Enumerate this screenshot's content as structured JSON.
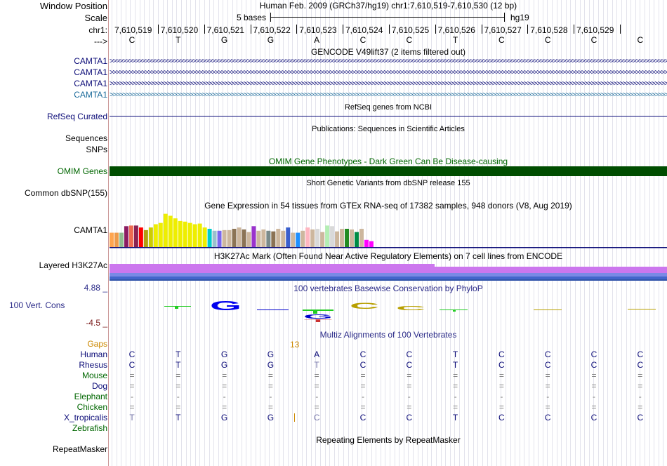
{
  "header": {
    "window_position_label": "Window Position",
    "scale_label": "Scale",
    "chrom_label": "chr1:",
    "strand_label": "--->",
    "assembly_title": "Human Feb. 2009 (GRCh37/hg19)   chr1:7,610,519-7,610,530 (12 bp)",
    "scale_text": "5 bases",
    "scale_db": "hg19",
    "coordinates": [
      "7,610,519",
      "7,610,520",
      "7,610,521",
      "7,610,522",
      "7,610,523",
      "7,610,524",
      "7,610,525",
      "7,610,526",
      "7,610,527",
      "7,610,528",
      "7,610,529"
    ],
    "bases": [
      "C",
      "T",
      "G",
      "G",
      "A",
      "C",
      "C",
      "T",
      "C",
      "C",
      "C",
      "C"
    ]
  },
  "tracks": {
    "gencode": {
      "title": "GENCODE V49lift37 (2 items filtered out)",
      "items": [
        "CAMTA1",
        "CAMTA1",
        "CAMTA1",
        "CAMTA1"
      ],
      "colors": [
        "#0c0c78",
        "#0c0c78",
        "#0c0c78",
        "#1a6a9a"
      ]
    },
    "refseq": {
      "label": "RefSeq Curated",
      "title": "RefSeq genes from NCBI"
    },
    "publications": {
      "label": "Sequences",
      "title": "Publications: Sequences in Scientific Articles"
    },
    "pub_snps": {
      "label": "SNPs"
    },
    "omim": {
      "label": "OMIM Genes",
      "title": "OMIM Gene Phenotypes - Dark Green Can Be Disease-causing",
      "color": "#004d00"
    },
    "dbsnp": {
      "label": "Common dbSNP(155)",
      "title": "Short Genetic Variants from dbSNP release 155"
    },
    "gtex": {
      "label": "CAMTA1",
      "title": "Gene Expression in 54 tissues from GTEx RNA-seq of 17382 samples, 948 donors (V8, Aug 2019)"
    },
    "h3k27ac": {
      "label": "Layered H3K27Ac",
      "title": "H3K27Ac Mark (Often Found Near Active Regulatory Elements) on 7 cell lines from ENCODE"
    },
    "cons": {
      "label": "100 Vert. Cons",
      "max": "4.88 _",
      "min": "-4.5 _",
      "title": "100 vertebrates Basewise Conservation by PhyloP"
    },
    "multiz": {
      "title": "Multiz Alignments of 100 Vertebrates",
      "gaps_label": "Gaps",
      "gaps_value": "13",
      "species": [
        {
          "name": "Human",
          "row": [
            "C",
            "T",
            "G",
            "G",
            "A",
            "C",
            "C",
            "T",
            "C",
            "C",
            "C",
            "C"
          ]
        },
        {
          "name": "Rhesus",
          "row": [
            "C",
            "T",
            "G",
            "G",
            "T",
            "C",
            "C",
            "T",
            "C",
            "C",
            "C",
            "C"
          ]
        },
        {
          "name": "Mouse",
          "row": [
            "=",
            "=",
            "=",
            "=",
            "=",
            "=",
            "=",
            "=",
            "=",
            "=",
            "=",
            "="
          ]
        },
        {
          "name": "Dog",
          "row": [
            "=",
            "=",
            "=",
            "=",
            "=",
            "=",
            "=",
            "=",
            "=",
            "=",
            "=",
            "="
          ]
        },
        {
          "name": "Elephant",
          "row": [
            "-",
            "-",
            "-",
            "-",
            "-",
            "-",
            "-",
            "-",
            "-",
            "-",
            "-",
            "-"
          ]
        },
        {
          "name": "Chicken",
          "row": [
            "=",
            "=",
            "=",
            "=",
            "=",
            "=",
            "=",
            "=",
            "=",
            "=",
            "=",
            "="
          ]
        },
        {
          "name": "X_tropicalis",
          "row": [
            "T",
            "T",
            "G",
            "G",
            "C",
            "C",
            "C",
            "T",
            "C",
            "C",
            "C",
            "C"
          ]
        },
        {
          "name": "Zebrafish",
          "row": [
            "",
            "",
            "",
            "",
            "",
            "",
            "",
            "",
            "",
            "",
            "",
            ""
          ]
        }
      ]
    },
    "repeatmasker": {
      "label": "RepeatMasker",
      "title": "Repeating Elements by RepeatMasker"
    }
  },
  "chart_data": {
    "type": "bar",
    "title": "Gene Expression in 54 tissues from GTEx RNA-seq of 17382 samples, 948 donors (V8, Aug 2019)",
    "values": [
      22,
      22,
      22,
      32,
      33,
      33,
      30,
      26,
      30,
      35,
      37,
      51,
      48,
      44,
      40,
      39,
      37,
      35,
      36,
      30,
      28,
      25,
      25,
      26,
      26,
      28,
      30,
      27,
      23,
      32,
      25,
      27,
      25,
      24,
      28,
      25,
      30,
      22,
      22,
      25,
      30,
      27,
      28,
      23,
      33,
      32,
      24,
      28,
      28,
      27,
      23,
      28,
      11,
      9
    ],
    "colors": [
      "#ffa54f",
      "#ee9a49",
      "#8fbc8f",
      "#8b1c62",
      "#ee6a50",
      "#8b2252",
      "#ff0000",
      "#b0a010",
      "#cdcd00",
      "#eeee00",
      "#eeee00",
      "#eeee00",
      "#eeee00",
      "#eeee00",
      "#eeee00",
      "#eeee00",
      "#eeee00",
      "#eeee00",
      "#eeee00",
      "#eeee00",
      "#00cdcd",
      "#9ac0cd",
      "#7a67ee",
      "#cdb79e",
      "#cdb79e",
      "#8b7355",
      "#cdb79e",
      "#8b7355",
      "#cdb79e",
      "#9a32cd",
      "#cdb79e",
      "#cdb79e",
      "#7a8b8b",
      "#8b7355",
      "#cdb79e",
      "#cdb79e",
      "#3a5fcd",
      "#cdb79e",
      "#1e90ff",
      "#cdb79e",
      "#ffb6c1",
      "#cdb79e",
      "#d9d9d9",
      "#cdb79e",
      "#b4eeb4",
      "#d9d9d9",
      "#cdb79e",
      "#cdb79e",
      "#228b22",
      "#cdb79e",
      "#008b45",
      "#cdb79e",
      "#ff00ff",
      "#ff00ff"
    ]
  }
}
